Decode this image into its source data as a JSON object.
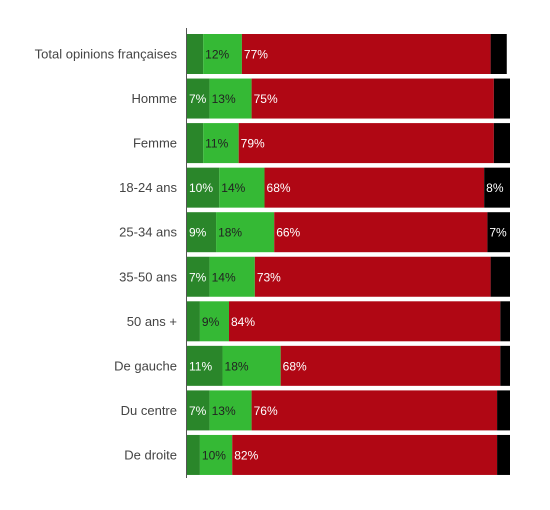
{
  "chart_data": {
    "type": "bar",
    "orientation": "horizontal",
    "stacked": true,
    "title": "",
    "xlabel": "",
    "ylabel": "",
    "xlim": [
      0,
      100
    ],
    "grid": false,
    "legend": "none",
    "categories": [
      "Total opinions françaises",
      "Homme",
      "Femme",
      "18-24 ans",
      "25-34 ans",
      "35-50 ans",
      "50 ans +",
      "De gauche",
      "Du centre",
      "De droite"
    ],
    "series": [
      {
        "values": [
          5,
          7,
          5,
          10,
          9,
          7,
          4,
          11,
          7,
          4
        ],
        "labels": [
          "",
          "7%",
          "",
          "10%",
          "9%",
          "7%",
          "",
          "11%",
          "7%",
          ""
        ]
      },
      {
        "values": [
          12,
          13,
          11,
          14,
          18,
          14,
          9,
          18,
          13,
          10
        ],
        "labels": [
          "12%",
          "13%",
          "11%",
          "14%",
          "18%",
          "14%",
          "9%",
          "18%",
          "13%",
          "10%"
        ]
      },
      {
        "values": [
          77,
          75,
          79,
          68,
          66,
          73,
          84,
          68,
          76,
          82
        ],
        "labels": [
          "77%",
          "75%",
          "79%",
          "68%",
          "66%",
          "73%",
          "84%",
          "68%",
          "76%",
          "82%"
        ]
      },
      {
        "values": [
          5,
          5,
          5,
          8,
          7,
          6,
          3,
          3,
          4,
          4
        ],
        "labels": [
          "",
          "",
          "",
          "8%",
          "7%",
          "",
          "",
          "",
          "",
          ""
        ]
      }
    ],
    "colors": [
      "#2a862a",
      "#35b935",
      "#b00714",
      "#000000"
    ],
    "label_colors": [
      "#ffffff",
      "#222222",
      "#ffffff",
      "#ffffff"
    ]
  }
}
